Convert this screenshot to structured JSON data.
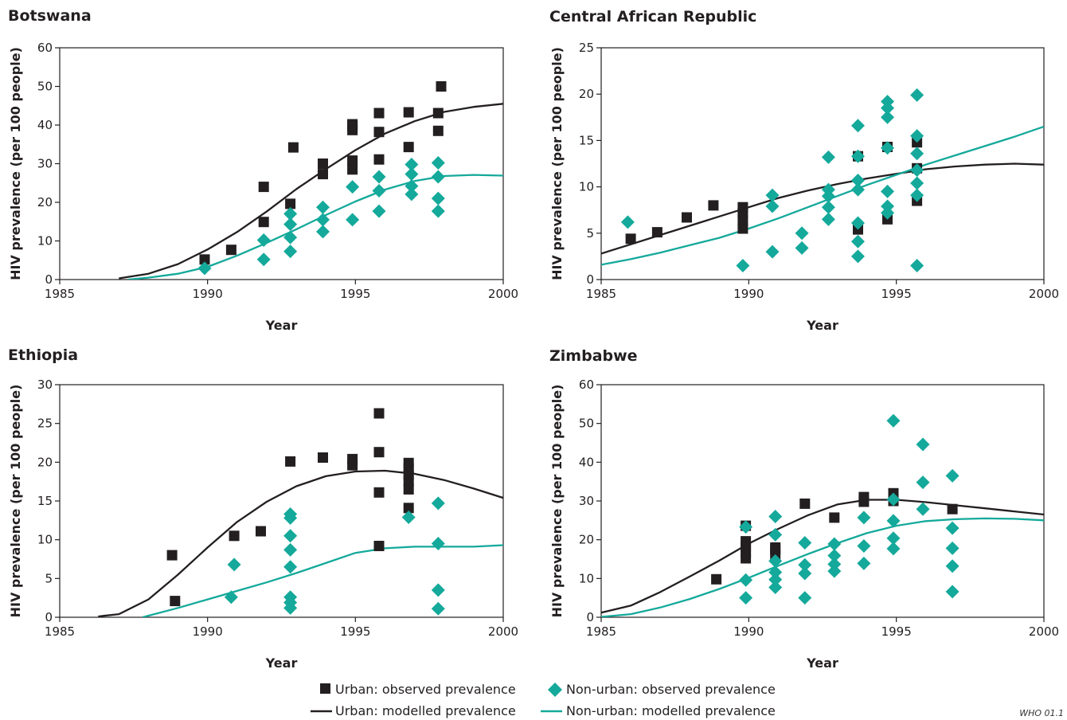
{
  "colors": {
    "urban": "#231f20",
    "non_urban": "#14a99b"
  },
  "legend": {
    "urban_observed": "Urban: observed prevalence",
    "non_urban_observed": "Non-urban: observed prevalence",
    "urban_modelled": "Urban: modelled prevalence",
    "non_urban_modelled": "Non-urban: modelled prevalence"
  },
  "credit": "WHO 01.1",
  "chart_data": [
    {
      "type": "scatter",
      "title": "Botswana",
      "xlabel": "Year",
      "ylabel": "HIV prevalence (per 100 people)",
      "xlim": [
        1985,
        2000
      ],
      "ylim": [
        0,
        60
      ],
      "xticks": [
        "1985",
        "1990",
        "1995",
        "2000"
      ],
      "yticks": [
        "0",
        "10",
        "20",
        "30",
        "40",
        "50",
        "60"
      ],
      "series": [
        {
          "name": "Urban: observed prevalence",
          "kind": "square",
          "x": [
            1989.9,
            1990.8,
            1991.9,
            1991.9,
            1992.8,
            1992.9,
            1993.9,
            1993.9,
            1994.9,
            1994.9,
            1994.9,
            1994.9,
            1994.9,
            1995.8,
            1995.8,
            1995.8,
            1996.8,
            1996.8,
            1997.8,
            1997.8,
            1997.9
          ],
          "y": [
            5.2,
            7.7,
            14.9,
            24.0,
            19.6,
            34.2,
            27.3,
            30.0,
            28.5,
            30.8,
            38.7,
            39.7,
            40.2,
            31.1,
            38.2,
            43.1,
            34.3,
            43.3,
            38.5,
            43.1,
            50.0
          ]
        },
        {
          "name": "Non-urban: observed prevalence",
          "kind": "diamond",
          "x": [
            1989.9,
            1991.9,
            1991.9,
            1992.8,
            1992.8,
            1992.8,
            1992.8,
            1993.9,
            1993.9,
            1993.9,
            1994.9,
            1994.9,
            1995.8,
            1995.8,
            1995.8,
            1996.9,
            1996.9,
            1996.9,
            1996.9,
            1997.8,
            1997.8,
            1997.8,
            1997.8
          ],
          "y": [
            2.9,
            5.2,
            10.2,
            7.3,
            10.9,
            14.3,
            17.0,
            12.4,
            15.5,
            18.7,
            15.5,
            24.0,
            17.7,
            23.0,
            26.6,
            22.1,
            24.2,
            27.3,
            29.8,
            17.7,
            21.0,
            26.6,
            30.2
          ]
        },
        {
          "name": "Urban: modelled prevalence",
          "kind": "line",
          "x": [
            1987.0,
            1988.0,
            1989.0,
            1990.0,
            1991.0,
            1992.0,
            1993.0,
            1994.0,
            1995.0,
            1996.0,
            1997.0,
            1998.0,
            1999.0,
            2000.0
          ],
          "y": [
            0.3,
            1.5,
            4.0,
            7.8,
            12.3,
            17.6,
            23.4,
            28.6,
            33.5,
            37.8,
            41.0,
            43.4,
            44.7,
            45.5
          ]
        },
        {
          "name": "Non-urban: modelled prevalence",
          "kind": "line",
          "x": [
            1987.3,
            1988.0,
            1989.0,
            1990.0,
            1991.0,
            1992.0,
            1993.0,
            1994.0,
            1995.0,
            1996.0,
            1997.0,
            1998.0,
            1999.0,
            2000.0
          ],
          "y": [
            0.0,
            0.5,
            1.5,
            3.3,
            6.2,
            9.5,
            13.0,
            16.7,
            20.2,
            23.3,
            25.5,
            26.8,
            27.1,
            26.9
          ]
        }
      ]
    },
    {
      "type": "scatter",
      "title": "Central African Republic",
      "xlabel": "Year",
      "ylabel": "HIV prevalence (per 100 people)",
      "xlim": [
        1985,
        2000
      ],
      "ylim": [
        0,
        25
      ],
      "xticks": [
        "1985",
        "1990",
        "1995",
        "2000"
      ],
      "yticks": [
        "0",
        "5",
        "10",
        "15",
        "20",
        "25"
      ],
      "series": [
        {
          "name": "Urban: observed prevalence",
          "kind": "square",
          "x": [
            1986.0,
            1986.9,
            1987.9,
            1988.8,
            1989.8,
            1989.8,
            1989.8,
            1989.8,
            1993.7,
            1993.7,
            1994.7,
            1994.7,
            1995.7,
            1995.7,
            1995.7
          ],
          "y": [
            4.4,
            5.1,
            6.7,
            8.0,
            5.5,
            6.4,
            7.2,
            7.8,
            5.4,
            13.3,
            6.5,
            14.3,
            8.5,
            12.0,
            14.8
          ]
        },
        {
          "name": "Non-urban: observed prevalence",
          "kind": "diamond",
          "x": [
            1985.9,
            1989.8,
            1990.8,
            1990.8,
            1990.8,
            1991.8,
            1991.8,
            1992.7,
            1992.7,
            1992.7,
            1992.7,
            1992.7,
            1993.7,
            1993.7,
            1993.7,
            1993.7,
            1993.7,
            1993.7,
            1993.7,
            1994.7,
            1994.7,
            1994.7,
            1994.7,
            1994.7,
            1994.7,
            1994.7,
            1995.7,
            1995.7,
            1995.7,
            1995.7,
            1995.7,
            1995.7,
            1995.7
          ],
          "y": [
            6.2,
            1.5,
            3.0,
            7.9,
            9.1,
            3.4,
            5.0,
            6.5,
            7.8,
            9.0,
            9.7,
            13.2,
            2.5,
            4.1,
            6.1,
            9.7,
            10.7,
            13.3,
            16.6,
            7.2,
            7.9,
            9.5,
            14.2,
            17.5,
            18.5,
            19.2,
            1.5,
            9.1,
            10.4,
            11.8,
            13.6,
            15.5,
            19.9
          ]
        },
        {
          "name": "Urban: modelled prevalence",
          "kind": "line",
          "x": [
            1985.0,
            1986.0,
            1987.0,
            1988.0,
            1989.0,
            1990.0,
            1991.0,
            1992.0,
            1993.0,
            1994.0,
            1995.0,
            1996.0,
            1997.0,
            1998.0,
            1999.0,
            2000.0
          ],
          "y": [
            2.8,
            3.8,
            4.8,
            5.8,
            6.8,
            7.8,
            8.8,
            9.6,
            10.3,
            10.9,
            11.4,
            11.9,
            12.2,
            12.4,
            12.5,
            12.4
          ]
        },
        {
          "name": "Non-urban: modelled prevalence",
          "kind": "line",
          "x": [
            1985.0,
            1986.0,
            1987.0,
            1988.0,
            1989.0,
            1990.0,
            1991.0,
            1992.0,
            1993.0,
            1994.0,
            1995.0,
            1996.0,
            1997.0,
            1998.0,
            1999.0,
            2000.0
          ],
          "y": [
            1.6,
            2.2,
            2.9,
            3.7,
            4.5,
            5.5,
            6.6,
            7.8,
            9.0,
            10.2,
            11.3,
            12.4,
            13.4,
            14.4,
            15.4,
            16.5
          ]
        }
      ]
    },
    {
      "type": "scatter",
      "title": "Ethiopia",
      "xlabel": "Year",
      "ylabel": "HIV prevalence (per 100 people)",
      "xlim": [
        1985,
        2000
      ],
      "ylim": [
        0,
        30
      ],
      "xticks": [
        "1985",
        "1990",
        "1995",
        "2000"
      ],
      "yticks": [
        "0",
        "5",
        "10",
        "15",
        "20",
        "25",
        "30"
      ],
      "series": [
        {
          "name": "Urban: observed prevalence",
          "kind": "square",
          "x": [
            1988.8,
            1988.9,
            1990.9,
            1991.8,
            1992.8,
            1993.9,
            1994.9,
            1994.9,
            1995.8,
            1995.8,
            1995.8,
            1995.8,
            1996.8,
            1996.8,
            1996.8,
            1996.8,
            1996.8,
            1996.8
          ],
          "y": [
            8.0,
            2.1,
            10.5,
            11.1,
            20.1,
            20.6,
            19.6,
            20.4,
            9.2,
            16.1,
            21.3,
            26.3,
            14.1,
            16.5,
            17.6,
            18.4,
            19.2,
            19.9
          ]
        },
        {
          "name": "Non-urban: observed prevalence",
          "kind": "diamond",
          "x": [
            1990.8,
            1990.9,
            1992.8,
            1992.8,
            1992.8,
            1992.8,
            1992.8,
            1992.8,
            1992.8,
            1992.8,
            1996.8,
            1997.8,
            1997.8,
            1997.8,
            1997.8
          ],
          "y": [
            2.6,
            6.8,
            1.2,
            1.9,
            2.6,
            6.5,
            8.7,
            10.5,
            12.8,
            13.3,
            12.9,
            1.1,
            3.5,
            9.5,
            14.7
          ]
        },
        {
          "name": "Urban: modelled prevalence",
          "kind": "line",
          "x": [
            1986.3,
            1987.0,
            1988.0,
            1989.0,
            1990.0,
            1991.0,
            1992.0,
            1993.0,
            1994.0,
            1995.0,
            1996.0,
            1997.0,
            1998.0,
            1999.0,
            2000.0
          ],
          "y": [
            0.1,
            0.4,
            2.3,
            5.5,
            9.0,
            12.3,
            14.9,
            16.9,
            18.2,
            18.8,
            18.9,
            18.5,
            17.7,
            16.6,
            15.4
          ]
        },
        {
          "name": "Non-urban: modelled prevalence",
          "kind": "line",
          "x": [
            1987.8,
            1989.0,
            1990.0,
            1991.0,
            1992.0,
            1993.0,
            1994.0,
            1995.0,
            1996.0,
            1997.0,
            1998.0,
            1999.0,
            2000.0
          ],
          "y": [
            0.0,
            1.2,
            2.3,
            3.4,
            4.5,
            5.7,
            7.0,
            8.3,
            8.9,
            9.1,
            9.1,
            9.1,
            9.3
          ]
        }
      ]
    },
    {
      "type": "scatter",
      "title": "Zimbabwe",
      "xlabel": "Year",
      "ylabel": "HIV prevalence (per 100 people)",
      "xlim": [
        1985,
        2000
      ],
      "ylim": [
        0,
        60
      ],
      "xticks": [
        "1985",
        "1990",
        "1995",
        "2000"
      ],
      "yticks": [
        "0",
        "10",
        "20",
        "30",
        "40",
        "50",
        "60"
      ],
      "series": [
        {
          "name": "Urban: observed prevalence",
          "kind": "square",
          "x": [
            1988.9,
            1989.9,
            1989.9,
            1989.9,
            1989.9,
            1989.9,
            1990.9,
            1990.9,
            1990.9,
            1991.9,
            1992.9,
            1993.9,
            1993.9,
            1994.9,
            1994.9,
            1996.9
          ],
          "y": [
            9.8,
            15.2,
            16.8,
            18.2,
            19.6,
            23.6,
            15.8,
            17.5,
            18.0,
            29.3,
            25.7,
            29.8,
            31.0,
            30.0,
            32.0,
            27.9
          ]
        },
        {
          "name": "Non-urban: observed prevalence",
          "kind": "diamond",
          "x": [
            1989.9,
            1989.9,
            1989.9,
            1990.9,
            1990.9,
            1990.9,
            1990.9,
            1990.9,
            1990.9,
            1991.9,
            1991.9,
            1991.9,
            1991.9,
            1992.9,
            1992.9,
            1992.9,
            1992.9,
            1993.9,
            1993.9,
            1993.9,
            1994.9,
            1994.9,
            1994.9,
            1994.9,
            1994.9,
            1995.9,
            1995.9,
            1995.9,
            1996.9,
            1996.9,
            1996.9,
            1996.9,
            1996.9
          ],
          "y": [
            5.0,
            9.6,
            23.3,
            7.7,
            9.7,
            11.6,
            14.5,
            21.3,
            26.0,
            5.0,
            11.3,
            13.5,
            19.2,
            11.9,
            13.7,
            15.9,
            18.9,
            13.9,
            18.4,
            25.7,
            17.7,
            20.4,
            24.9,
            30.4,
            50.7,
            27.9,
            34.8,
            44.6,
            6.6,
            13.2,
            17.8,
            23.0,
            36.5
          ]
        },
        {
          "name": "Urban: modelled prevalence",
          "kind": "line",
          "x": [
            1985.0,
            1986.0,
            1987.0,
            1988.0,
            1989.0,
            1990.0,
            1991.0,
            1992.0,
            1993.0,
            1994.0,
            1995.0,
            1996.0,
            1997.0,
            1998.0,
            1999.0,
            2000.0
          ],
          "y": [
            1.2,
            3.0,
            6.5,
            10.5,
            14.6,
            19.0,
            22.8,
            26.3,
            29.1,
            30.3,
            30.3,
            29.7,
            28.9,
            28.1,
            27.3,
            26.5
          ]
        },
        {
          "name": "Non-urban: modelled prevalence",
          "kind": "line",
          "x": [
            1985.0,
            1986.0,
            1987.0,
            1988.0,
            1989.0,
            1990.0,
            1991.0,
            1992.0,
            1993.0,
            1994.0,
            1995.0,
            1996.0,
            1997.0,
            1998.0,
            1999.0,
            2000.0
          ],
          "y": [
            0.1,
            0.8,
            2.5,
            4.7,
            7.3,
            10.2,
            13.3,
            16.3,
            19.1,
            21.7,
            23.6,
            24.8,
            25.3,
            25.5,
            25.4,
            25.0
          ]
        }
      ]
    }
  ]
}
